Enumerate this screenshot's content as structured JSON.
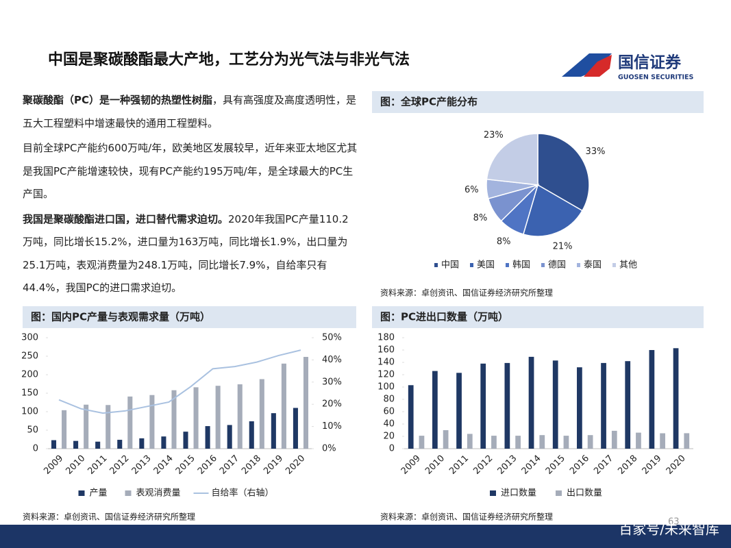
{
  "header": {
    "title": "中国是聚碳酸酯最大产地，工艺分为光气法与非光气法",
    "logo_name": "国信证券",
    "logo_en": "GUOSEN SECURITIES"
  },
  "paragraphs": [
    {
      "bold": "聚碳酸酯（PC）是一种强韧的热塑性树脂",
      "text": "，具有高强度及高度透明性，是五大工程塑料中增速最快的通用工程塑料。"
    },
    {
      "text": "目前全球PC产能约600万吨/年，欧美地区发展较早，近年来亚太地区尤其是我国PC产能增速较快，现有PC产能约195万吨/年，是全球最大的PC生产国。"
    },
    {
      "bold": "我国是聚碳酸酯进口国，进口替代需求迫切。",
      "text": "2020年我国PC产量110.2万吨，同比增长15.2%，进口量为163万吨，同比增长1.9%，出口量为25.1万吨，表观消费量为248.1万吨，同比增长7.9%，自给率只有44.4%，我国PC的进口需求迫切。"
    }
  ],
  "chart_data": [
    {
      "type": "pie",
      "title": "图：全球PC产能分布",
      "categories": [
        "中国",
        "美国",
        "韩国",
        "德国",
        "泰国",
        "其他"
      ],
      "values": [
        33,
        21,
        8,
        8,
        6,
        23
      ],
      "value_labels": [
        "33%",
        "21%",
        "8%",
        "8%",
        "6%",
        "23%"
      ],
      "colors": [
        "#2f4f8f",
        "#3b62b0",
        "#4f74c4",
        "#7a92cf",
        "#a3b4de",
        "#c3cde6"
      ],
      "source": "资料来源：卓创资讯、国信证券经济研究所整理"
    },
    {
      "type": "bar",
      "title": "图：国内PC产量与表观需求量（万吨）",
      "categories": [
        "2009",
        "2010",
        "2011",
        "2012",
        "2013",
        "2014",
        "2015",
        "2016",
        "2017",
        "2018",
        "2019",
        "2020"
      ],
      "series": [
        {
          "name": "产量",
          "color": "#1f3864",
          "values": [
            23,
            21,
            19,
            24,
            28,
            33,
            46,
            61,
            64,
            74,
            96,
            110.2
          ]
        },
        {
          "name": "表观消费量",
          "color": "#a5acb9",
          "values": [
            104,
            119,
            118,
            141,
            145,
            158,
            166,
            170,
            174,
            188,
            230,
            248.1
          ]
        },
        {
          "name": "自给率（右轴）",
          "color": "#a9c1e0",
          "type": "line",
          "axis": "y2",
          "values": [
            22,
            18,
            16,
            17,
            19,
            21,
            28,
            36,
            37,
            39,
            42,
            44.4
          ]
        }
      ],
      "ylim": [
        0,
        300
      ],
      "yticks": [
        0,
        50,
        100,
        150,
        200,
        250,
        300
      ],
      "y2lim": [
        0,
        50
      ],
      "y2ticks": [
        {
          "value": 0,
          "label": "0%"
        },
        {
          "value": 10,
          "label": "10%"
        },
        {
          "value": 20,
          "label": "20%"
        },
        {
          "value": 30,
          "label": "30%"
        },
        {
          "value": 40,
          "label": "40%"
        },
        {
          "value": 50,
          "label": "50%"
        }
      ],
      "source": "资料来源：卓创资讯、国信证券经济研究所整理"
    },
    {
      "type": "bar",
      "title": "图：PC进出口数量（万吨）",
      "categories": [
        "2009",
        "2010",
        "2011",
        "2012",
        "2013",
        "2014",
        "2015",
        "2016",
        "2017",
        "2018",
        "2019",
        "2020"
      ],
      "series": [
        {
          "name": "进口数量",
          "color": "#1f3864",
          "values": [
            103,
            126,
            123,
            138,
            139,
            149,
            143,
            132,
            139,
            142,
            160,
            163
          ]
        },
        {
          "name": "出口数量",
          "color": "#a5acb9",
          "values": [
            21,
            30,
            24,
            21,
            21,
            22,
            21,
            22,
            29,
            26,
            25,
            25.1
          ]
        }
      ],
      "ylim": [
        0,
        180
      ],
      "yticks": [
        0,
        20,
        40,
        60,
        80,
        100,
        120,
        140,
        160,
        180
      ],
      "source": "资料来源：卓创资讯、国信证券经济研究所整理"
    }
  ],
  "footer": {
    "page_number": "63",
    "watermark": "百家号/未来智库"
  }
}
